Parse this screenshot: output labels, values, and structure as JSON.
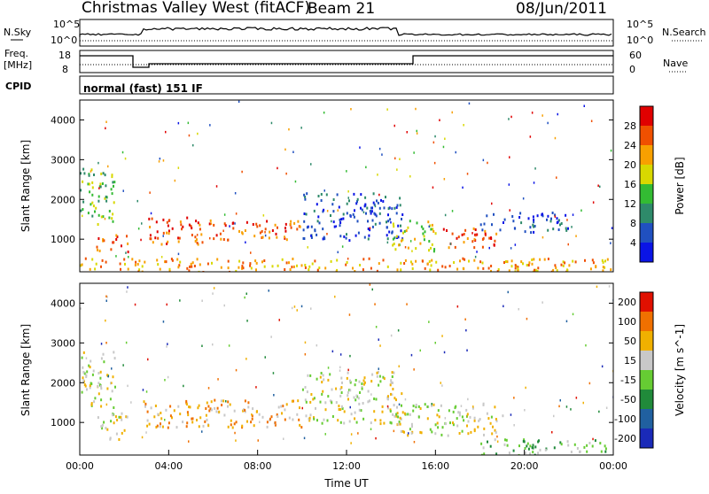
{
  "header": {
    "station": "Christmas Valley West (fitACF)",
    "beam": "Beam 21",
    "date": "08/Jun/2011"
  },
  "top_panels": {
    "nsky_label": "N.Sky",
    "nsearch_label": "N.Search",
    "nsky_ticks": [
      "10^5",
      "10^0"
    ],
    "nsearch_ticks": [
      "10^5",
      "10^0"
    ],
    "freq_label": "Freq.",
    "freq_unit": "[MHz]",
    "freq_ticks": [
      "18",
      "8"
    ],
    "nave_label": "Nave",
    "nave_ticks": [
      "60",
      "0"
    ],
    "cpid_label": "CPID",
    "cpid_text": "normal (fast) 151 IF"
  },
  "chart_data": [
    {
      "type": "heatmap",
      "title": "",
      "xlabel": "",
      "ylabel": "Slant Range [km]",
      "xlim": [
        0,
        24
      ],
      "ylim": [
        180,
        4500
      ],
      "yticks": [
        1000,
        2000,
        3000,
        4000
      ],
      "ytick_labels": [
        "1000",
        "2000",
        "3000",
        "4000"
      ],
      "colorbar": {
        "label": "Power [dB]",
        "ticks": [
          "4",
          "8",
          "12",
          "16",
          "20",
          "24",
          "28"
        ],
        "tick_values": [
          4,
          8,
          12,
          16,
          20,
          24,
          28
        ],
        "colors": [
          "#0a14e6",
          "#2050c0",
          "#2e8a6a",
          "#33bb33",
          "#d8d800",
          "#f8a000",
          "#f05000",
          "#e00000"
        ]
      },
      "regions": [
        {
          "t0": 0.0,
          "t1": 1.6,
          "r0": 1400,
          "r1": 2800,
          "level": 3
        },
        {
          "t0": 0.7,
          "t1": 2.2,
          "r0": 700,
          "r1": 1150,
          "level": 6
        },
        {
          "t0": 2.8,
          "t1": 5.5,
          "r0": 900,
          "r1": 1600,
          "level": 6
        },
        {
          "t0": 5.8,
          "t1": 10.0,
          "r0": 1000,
          "r1": 1500,
          "level": 6
        },
        {
          "t0": 10.0,
          "t1": 14.5,
          "r0": 1000,
          "r1": 2200,
          "level": 1
        },
        {
          "t0": 14.0,
          "t1": 16.0,
          "r0": 700,
          "r1": 1500,
          "level": 4
        },
        {
          "t0": 16.3,
          "t1": 19.0,
          "r0": 800,
          "r1": 1300,
          "level": 6
        },
        {
          "t0": 18.0,
          "t1": 22.0,
          "r0": 1200,
          "r1": 1700,
          "level": 1
        },
        {
          "t0": 0.0,
          "t1": 24.0,
          "r0": 200,
          "r1": 550,
          "level": 5
        }
      ]
    },
    {
      "type": "heatmap",
      "title": "",
      "xlabel": "Time UT",
      "ylabel": "Slant Range [km]",
      "xlim": [
        0,
        24
      ],
      "ylim": [
        180,
        4500
      ],
      "yticks": [
        1000,
        2000,
        3000,
        4000
      ],
      "ytick_labels": [
        "1000",
        "2000",
        "3000",
        "4000"
      ],
      "xticks": [
        0,
        4,
        8,
        12,
        16,
        20,
        24
      ],
      "xtick_labels": [
        "00:00",
        "04:00",
        "08:00",
        "12:00",
        "16:00",
        "20:00",
        "00:00"
      ],
      "colorbar": {
        "label": "Velocity [m s^-1]",
        "ticks": [
          "200",
          "100",
          "50",
          "15",
          "-15",
          "-50",
          "-100",
          "-200"
        ],
        "tick_values": [
          200,
          100,
          50,
          15,
          -15,
          -50,
          -100,
          -200
        ],
        "colors": [
          "#1a2ab8",
          "#2060a0",
          "#208a3a",
          "#66cc33",
          "#c8c8c8",
          "#f0b000",
          "#f07000",
          "#e01000"
        ]
      },
      "regions": [
        {
          "t0": 0.0,
          "t1": 1.6,
          "r0": 1400,
          "r1": 2800,
          "level": 4
        },
        {
          "t0": 0.7,
          "t1": 2.2,
          "r0": 600,
          "r1": 1300,
          "level": 4
        },
        {
          "t0": 2.8,
          "t1": 10.0,
          "r0": 900,
          "r1": 1600,
          "level": 5
        },
        {
          "t0": 10.0,
          "t1": 14.5,
          "r0": 1000,
          "r1": 2300,
          "level": 4
        },
        {
          "t0": 14.0,
          "t1": 19.0,
          "r0": 700,
          "r1": 1500,
          "level": 4
        },
        {
          "t0": 18.0,
          "t1": 24.0,
          "r0": 200,
          "r1": 600,
          "level": 3
        }
      ]
    }
  ]
}
